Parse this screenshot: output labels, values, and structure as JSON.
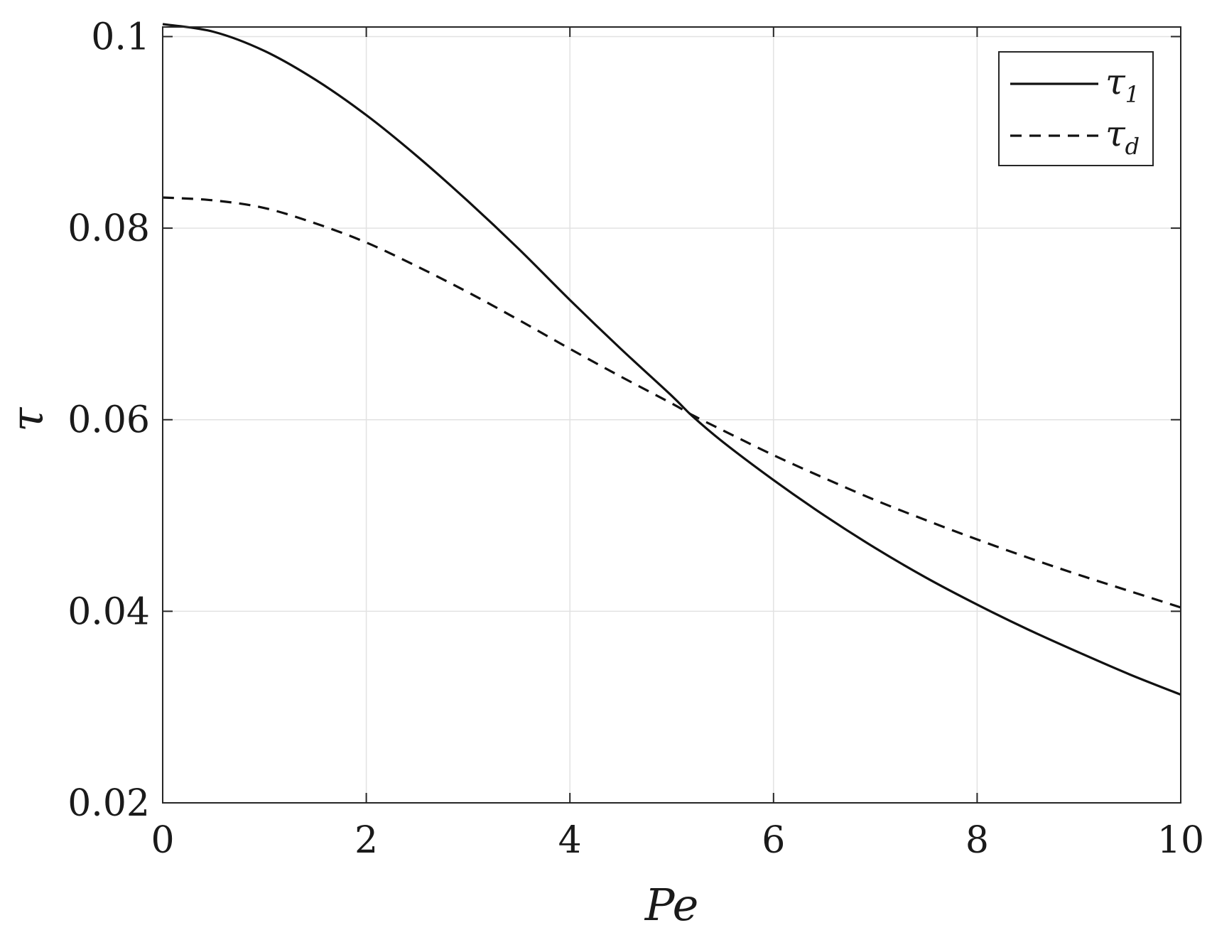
{
  "chart_data": {
    "type": "line",
    "title": "",
    "xlabel": "Pe",
    "ylabel": "τ",
    "xlim": [
      0,
      10
    ],
    "ylim": [
      0.02,
      0.101
    ],
    "xticks": [
      0,
      2,
      4,
      6,
      8,
      10
    ],
    "yticks": [
      0.02,
      0.04,
      0.06,
      0.08,
      0.1
    ],
    "xtick_labels": [
      "0",
      "2",
      "4",
      "6",
      "8",
      "10"
    ],
    "ytick_labels": [
      "0.02",
      "0.04",
      "0.06",
      "0.08",
      "0.1"
    ],
    "grid": true,
    "legend_position": "top-right",
    "x": [
      0,
      0.5,
      1,
      1.5,
      2,
      2.5,
      3,
      3.5,
      4,
      4.5,
      5,
      5.2,
      5.5,
      6,
      6.5,
      7,
      7.5,
      8,
      8.5,
      9,
      9.5,
      10
    ],
    "series": [
      {
        "name": "τ",
        "subscript": "1",
        "style": "solid",
        "color": "#111111",
        "values": [
          0.1013,
          0.1005,
          0.0985,
          0.0955,
          0.0918,
          0.0875,
          0.0828,
          0.0778,
          0.0725,
          0.0674,
          0.0625,
          0.0604,
          0.0577,
          0.0537,
          0.05,
          0.0466,
          0.0435,
          0.0407,
          0.0381,
          0.0357,
          0.0334,
          0.0313
        ]
      },
      {
        "name": "τ",
        "subscript": "d",
        "style": "dashed",
        "color": "#111111",
        "values": [
          0.0832,
          0.0829,
          0.0821,
          0.0805,
          0.0785,
          0.076,
          0.0733,
          0.0704,
          0.0674,
          0.0645,
          0.0617,
          0.0605,
          0.0589,
          0.0563,
          0.0539,
          0.0516,
          0.0495,
          0.0475,
          0.0456,
          0.0438,
          0.0421,
          0.0404
        ]
      }
    ]
  }
}
